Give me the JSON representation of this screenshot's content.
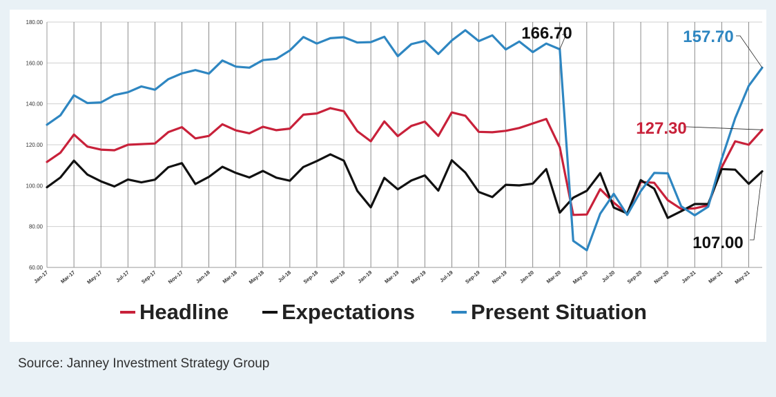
{
  "source_text": "Source: Janney Investment Strategy Group",
  "chart_data": {
    "type": "line",
    "ylim": [
      60,
      180
    ],
    "yticks": [
      "60.00",
      "80.00",
      "100.00",
      "120.00",
      "140.00",
      "160.00",
      "180.00"
    ],
    "tick_labels": [
      "Jan-17",
      "Mar-17",
      "May-17",
      "Jul-17",
      "Sep-17",
      "Nov-17",
      "Jan-18",
      "Mar-18",
      "May-18",
      "Jul-18",
      "Sep-18",
      "Nov-18",
      "Jan-19",
      "Mar-19",
      "May-19",
      "Jul-19",
      "Sep-19",
      "Nov-19",
      "Jan-20",
      "Mar-20",
      "May-20",
      "Jul-20",
      "Sep-20",
      "Nov-20",
      "Jan-21",
      "Mar-21",
      "May-21"
    ],
    "x": [
      "Jan-17",
      "Feb-17",
      "Mar-17",
      "Apr-17",
      "May-17",
      "Jun-17",
      "Jul-17",
      "Aug-17",
      "Sep-17",
      "Oct-17",
      "Nov-17",
      "Dec-17",
      "Jan-18",
      "Feb-18",
      "Mar-18",
      "Apr-18",
      "May-18",
      "Jun-18",
      "Jul-18",
      "Aug-18",
      "Sep-18",
      "Oct-18",
      "Nov-18",
      "Dec-18",
      "Jan-19",
      "Feb-19",
      "Mar-19",
      "Apr-19",
      "May-19",
      "Jun-19",
      "Jul-19",
      "Aug-19",
      "Sep-19",
      "Oct-19",
      "Nov-19",
      "Dec-19",
      "Jan-20",
      "Feb-20",
      "Mar-20",
      "Apr-20",
      "May-20",
      "Jun-20",
      "Jul-20",
      "Aug-20",
      "Sep-20",
      "Oct-20",
      "Nov-20",
      "Dec-20",
      "Jan-21",
      "Feb-21",
      "Mar-21",
      "Apr-21",
      "May-21",
      "Jun-21"
    ],
    "series": [
      {
        "name": "Headline",
        "color": "#c8213a",
        "values": [
          111.6,
          116.1,
          125.0,
          119.1,
          117.6,
          117.3,
          120.0,
          120.3,
          120.6,
          126.2,
          128.6,
          123.1,
          124.3,
          130.0,
          127.0,
          125.6,
          128.8,
          127.1,
          127.9,
          134.7,
          135.3,
          137.9,
          136.4,
          126.6,
          121.7,
          131.4,
          124.2,
          129.2,
          131.3,
          124.3,
          135.8,
          134.2,
          126.3,
          126.1,
          126.8,
          128.2,
          130.4,
          132.6,
          118.8,
          85.7,
          85.9,
          98.3,
          91.7,
          86.3,
          101.8,
          101.4,
          92.9,
          88.6,
          88.9,
          90.4,
          109.0,
          121.7,
          120.0,
          127.3
        ]
      },
      {
        "name": "Expectations",
        "color": "#111111",
        "values": [
          99.2,
          104.0,
          112.2,
          105.4,
          102.1,
          99.6,
          103.0,
          101.6,
          102.9,
          109.0,
          111.0,
          100.8,
          104.3,
          109.2,
          106.2,
          104.0,
          107.2,
          103.9,
          102.4,
          109.1,
          112.0,
          115.3,
          112.2,
          97.4,
          89.4,
          103.8,
          98.2,
          102.5,
          105.0,
          97.6,
          112.4,
          106.4,
          96.9,
          94.4,
          100.4,
          100.1,
          101.0,
          108.1,
          86.8,
          94.1,
          97.5,
          106.1,
          89.3,
          86.4,
          102.7,
          98.5,
          84.2,
          87.5,
          91.0,
          91.0,
          108.1,
          107.8,
          100.9,
          107.0
        ]
      },
      {
        "name": "Present Situation",
        "color": "#2e86c1",
        "values": [
          129.8,
          134.4,
          144.2,
          140.4,
          140.7,
          144.3,
          145.7,
          148.5,
          146.9,
          152.1,
          154.9,
          156.5,
          154.8,
          161.2,
          158.2,
          157.7,
          161.4,
          162.0,
          166.1,
          172.7,
          169.5,
          172.1,
          172.6,
          170.0,
          170.2,
          172.8,
          163.3,
          169.2,
          170.8,
          164.4,
          171.0,
          176.0,
          170.7,
          173.5,
          166.6,
          170.5,
          165.3,
          169.5,
          166.7,
          73.0,
          68.4,
          86.3,
          96.0,
          85.7,
          97.3,
          106.2,
          106.0,
          89.9,
          85.5,
          89.7,
          113.1,
          133.0,
          148.8,
          157.7
        ]
      }
    ],
    "annotations": [
      {
        "text": "166.70",
        "color": "#111111",
        "series": 2,
        "index": 38
      },
      {
        "text": "157.70",
        "color": "#2e86c1",
        "series": 2,
        "index": 53
      },
      {
        "text": "127.30",
        "color": "#c8213a",
        "series": 0,
        "index": 53
      },
      {
        "text": "107.00",
        "color": "#111111",
        "series": 1,
        "index": 53
      }
    ]
  }
}
